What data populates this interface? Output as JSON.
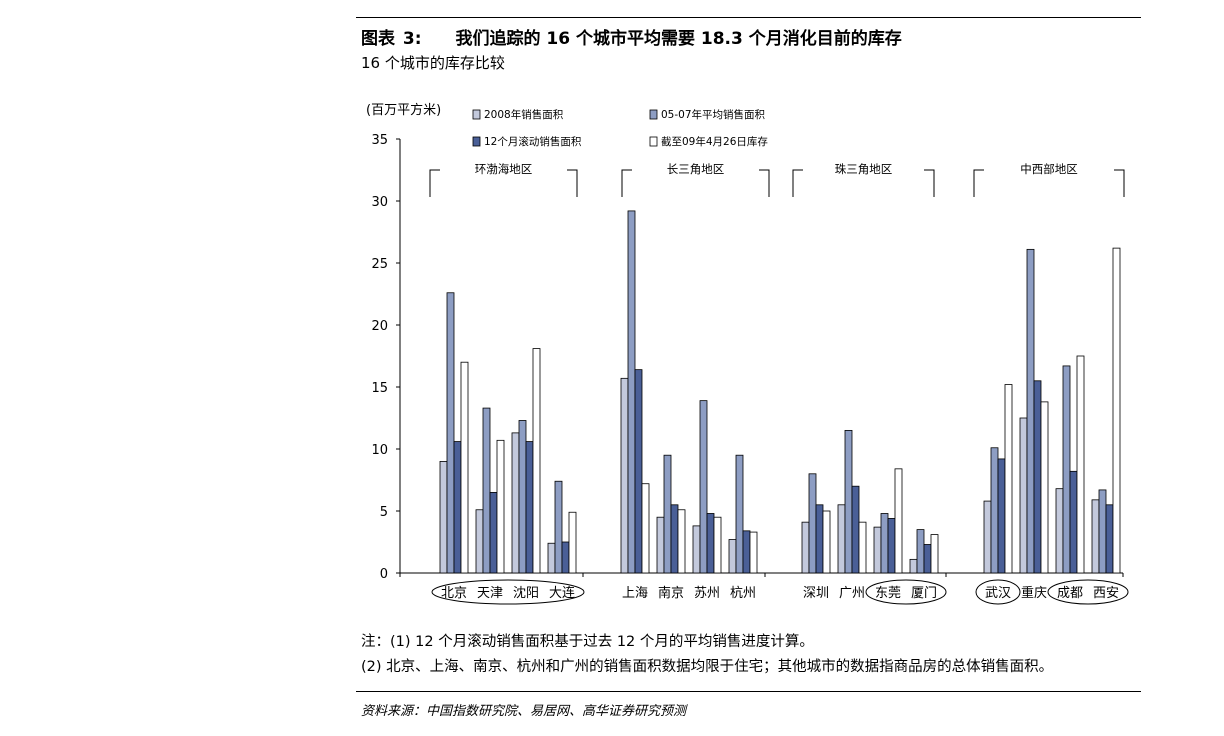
{
  "figure": {
    "label": "图表",
    "number": "3:",
    "title": "我们追踪的 16 个城市平均需要 18.3 个月消化目前的库存",
    "subtitle": "16 个城市的库存比较"
  },
  "chart_data": {
    "type": "bar",
    "ylabel": "(百万平方米)",
    "ylim": [
      0,
      35
    ],
    "yticks": [
      "0",
      "5",
      "10",
      "15",
      "20",
      "25",
      "30",
      "35"
    ],
    "grid": false,
    "legend_position": "top",
    "categories": [
      "北京",
      "天津",
      "沈阳",
      "大连",
      "上海",
      "南京",
      "苏州",
      "杭州",
      "深圳",
      "广州",
      "东莞",
      "厦门",
      "武汉",
      "重庆",
      "成都",
      "西安"
    ],
    "regions": [
      {
        "name": "环渤海地区",
        "cities": [
          "北京",
          "天津",
          "沈阳",
          "大连"
        ]
      },
      {
        "name": "长三角地区",
        "cities": [
          "上海",
          "南京",
          "苏州",
          "杭州"
        ]
      },
      {
        "name": "珠三角地区",
        "cities": [
          "深圳",
          "广州",
          "东莞",
          "厦门"
        ]
      },
      {
        "name": "中西部地区",
        "cities": [
          "武汉",
          "重庆",
          "成都",
          "西安"
        ]
      }
    ],
    "series": [
      {
        "name": "2008年销售面积",
        "color": "#c3c9dc",
        "values": [
          9.0,
          5.1,
          11.3,
          2.4,
          15.7,
          4.5,
          3.8,
          2.7,
          4.1,
          5.5,
          3.7,
          1.1,
          5.8,
          12.5,
          6.8,
          5.9
        ]
      },
      {
        "name": "05-07年平均销售面积",
        "color": "#8d9dc3",
        "values": [
          22.6,
          13.3,
          12.3,
          7.4,
          29.2,
          9.5,
          13.9,
          9.5,
          8.0,
          11.5,
          4.8,
          3.5,
          10.1,
          26.1,
          16.7,
          6.7
        ]
      },
      {
        "name": "12个月滚动销售面积",
        "color": "#4a5f97",
        "values": [
          10.6,
          6.5,
          10.6,
          2.5,
          16.4,
          5.5,
          4.8,
          3.4,
          5.5,
          7.0,
          4.4,
          2.3,
          9.2,
          15.5,
          8.2,
          5.5
        ]
      },
      {
        "name": "截至09年4月26日库存",
        "color": "#ffffff",
        "values": [
          17.0,
          10.7,
          18.1,
          4.9,
          7.2,
          5.1,
          4.5,
          3.3,
          5.0,
          4.1,
          8.4,
          3.1,
          15.2,
          13.8,
          17.5,
          26.2
        ]
      }
    ],
    "circled_groups": [
      [
        "北京",
        "天津",
        "沈阳",
        "大连"
      ],
      [
        "东莞",
        "厦门"
      ],
      [
        "武汉"
      ],
      [
        "成都",
        "西安"
      ]
    ]
  },
  "notes": [
    "注：(1) 12 个月滚动销售面积基于过去 12 个月的平均销售进度计算。",
    "(2) 北京、上海、南京、杭州和广州的销售面积数据均限于住宅；其他城市的数据指商品房的总体销售面积。"
  ],
  "source": "资料来源：中国指数研究院、易居网、高华证券研究预测"
}
